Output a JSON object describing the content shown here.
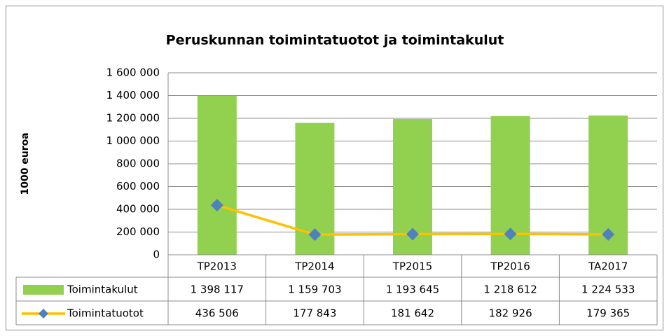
{
  "chart_data": {
    "type": "combo",
    "title": "Peruskunnan toimintatuotot ja toimintakulut",
    "ylabel": "1000 euroa",
    "categories": [
      "TP2013",
      "TP2014",
      "TP2015",
      "TP2016",
      "TA2017"
    ],
    "series": [
      {
        "name": "Toimintakulut",
        "type": "bar",
        "color": "#92d050",
        "values": [
          1398117,
          1159703,
          1193645,
          1218612,
          1224533
        ],
        "value_labels": [
          "1 398 117",
          "1 159 703",
          "1 193 645",
          "1 218 612",
          "1 224 533"
        ]
      },
      {
        "name": "Toimintatuotot",
        "type": "line",
        "color": "#ffc000",
        "marker_color": "#4f81bd",
        "values": [
          436506,
          177843,
          181642,
          182926,
          179365
        ],
        "value_labels": [
          "436 506",
          "177 843",
          "181 642",
          "182 926",
          "179 365"
        ]
      }
    ],
    "ylim": [
      0,
      1600000
    ],
    "yticks": [
      0,
      {
        "value": 200000,
        "label": "200 000"
      },
      {
        "value": 400000,
        "label": "400 000"
      },
      {
        "value": 600000,
        "label": "600 000"
      },
      {
        "value": 800000,
        "label": "800 000"
      },
      {
        "value": 1000000,
        "label": "1 000 000"
      },
      {
        "value": 1200000,
        "label": "1 200 000"
      },
      {
        "value": 1400000,
        "label": "1 400 000"
      },
      {
        "value": 1600000,
        "label": "1 600 000"
      }
    ],
    "grid": true
  }
}
